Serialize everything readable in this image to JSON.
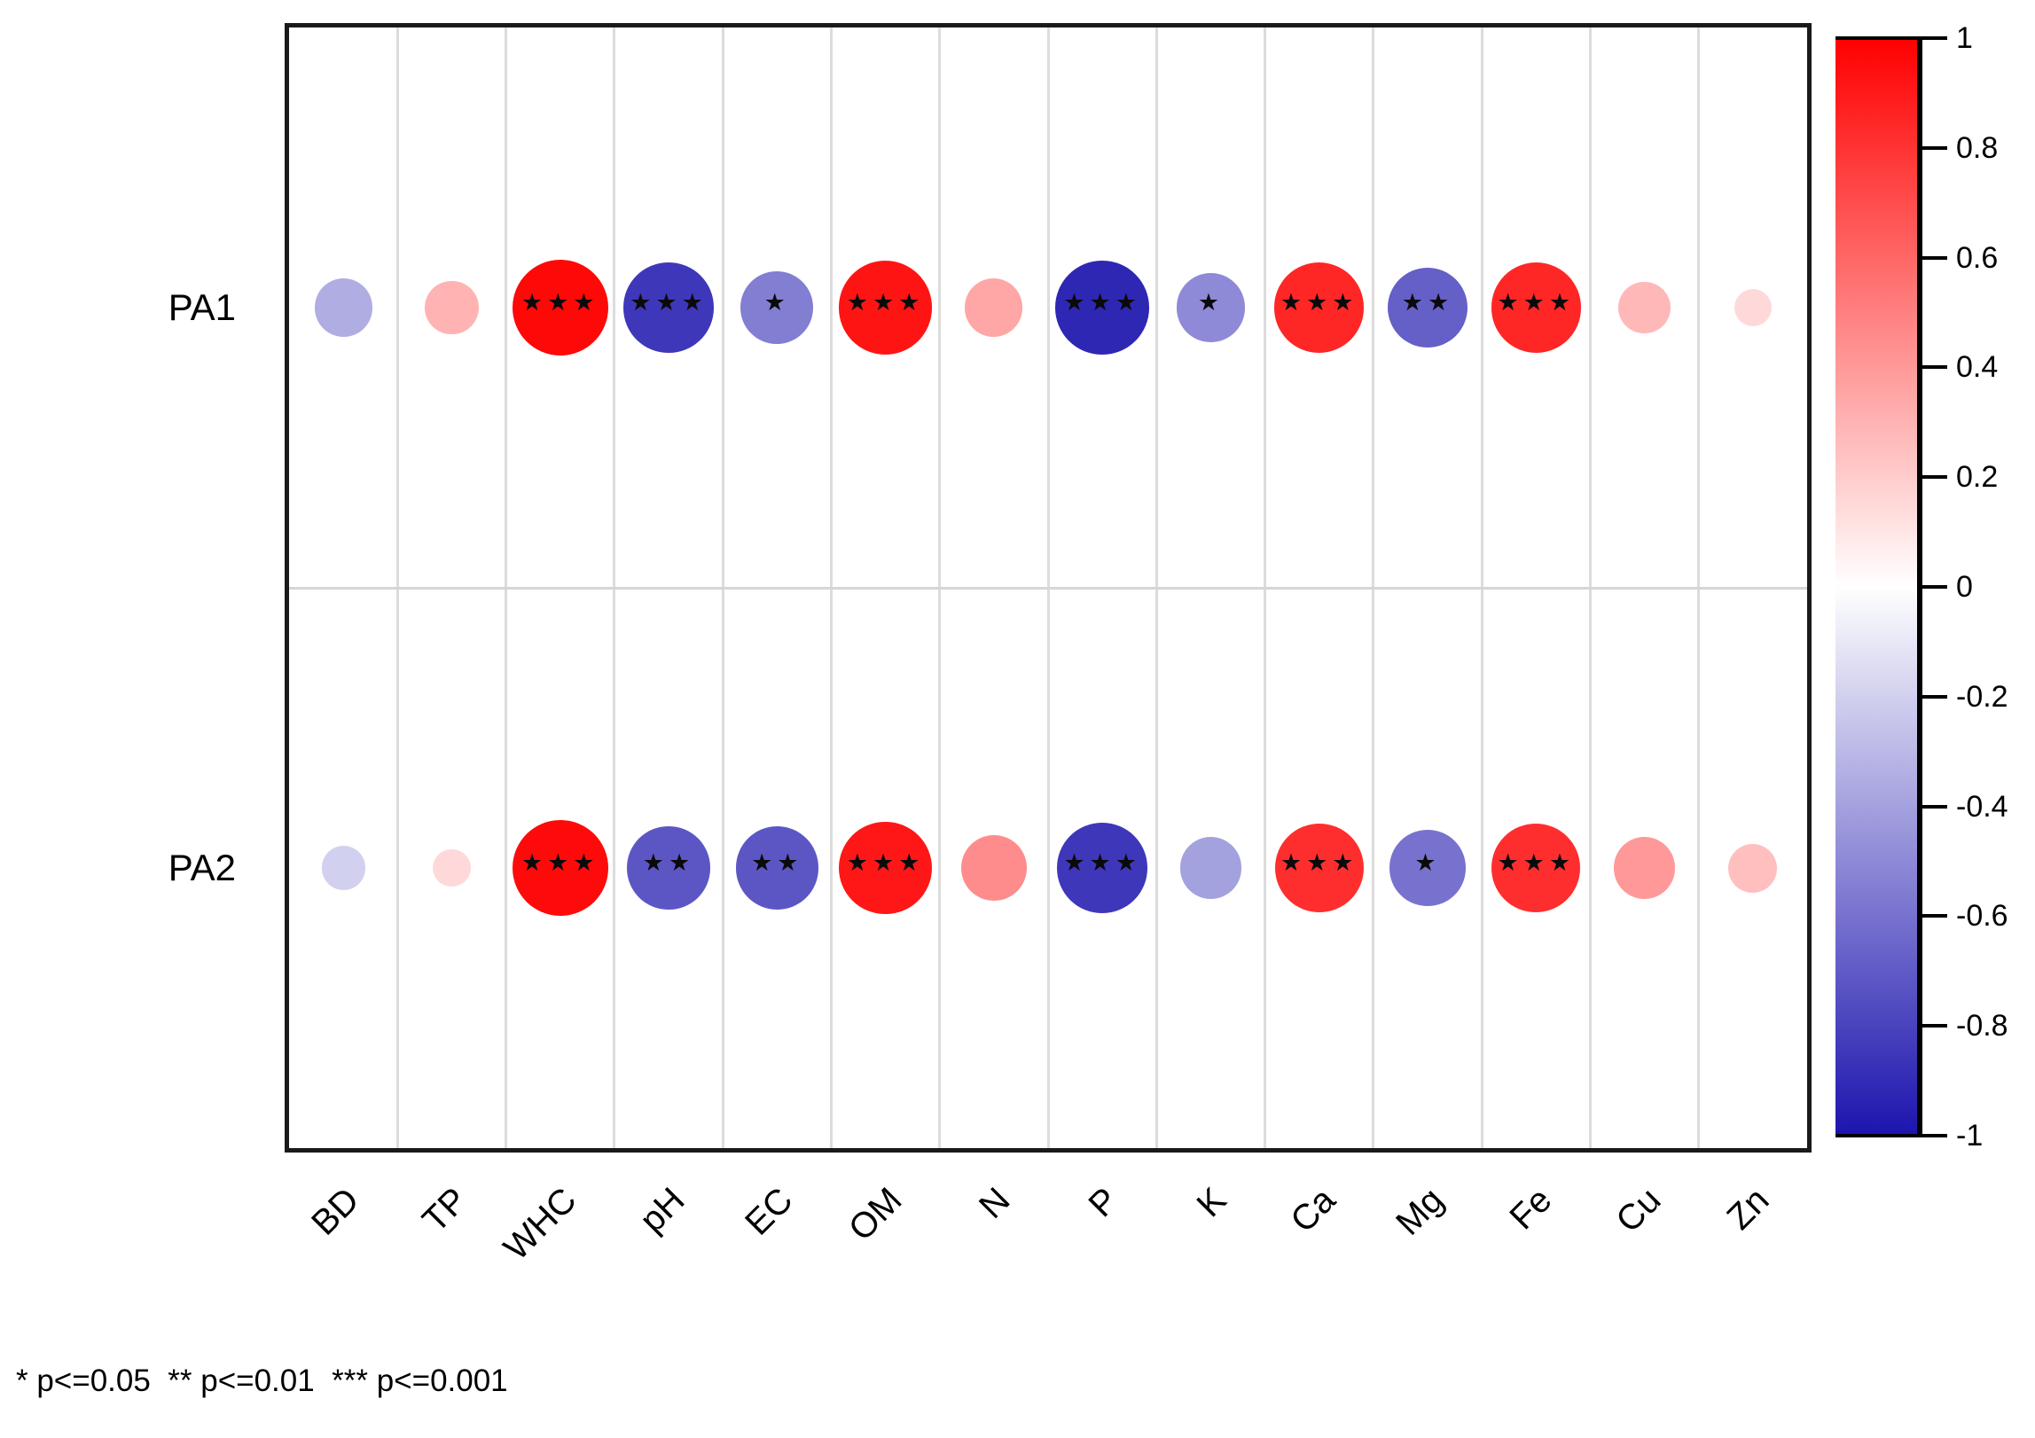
{
  "chart_data": {
    "type": "correlation-bubble-matrix",
    "title": "",
    "rows": [
      "PA1",
      "PA2"
    ],
    "columns": [
      "BD",
      "TP",
      "WHC",
      "pH",
      "EC",
      "OM",
      "N",
      "P",
      "K",
      "Ca",
      "Mg",
      "Fe",
      "Cu",
      "Zn"
    ],
    "series": [
      {
        "name": "PA1",
        "values": [
          -0.35,
          0.3,
          0.97,
          -0.85,
          -0.55,
          0.92,
          0.35,
          -0.92,
          -0.5,
          0.85,
          -0.68,
          0.85,
          0.28,
          0.15
        ],
        "significance": [
          "",
          "",
          "***",
          "***",
          "*",
          "***",
          "",
          "***",
          "*",
          "***",
          "**",
          "***",
          "",
          ""
        ]
      },
      {
        "name": "PA2",
        "values": [
          -0.2,
          0.15,
          0.96,
          -0.72,
          -0.72,
          0.91,
          0.45,
          -0.85,
          -0.4,
          0.82,
          -0.6,
          0.82,
          0.4,
          0.25
        ],
        "significance": [
          "",
          "",
          "***",
          "**",
          "**",
          "***",
          "",
          "***",
          "",
          "***",
          "*",
          "***",
          "",
          ""
        ]
      }
    ],
    "colorbar": {
      "min": -1,
      "max": 1,
      "tick_labels": [
        "1",
        "0.8",
        "0.6",
        "0.4",
        "0.2",
        "0",
        "-0.2",
        "-0.4",
        "-0.6",
        "-0.8",
        "-1"
      ],
      "color_positive": "#ff0000",
      "color_zero": "#ffffff",
      "color_negative": "#1c14ae"
    },
    "star_glyph": "★",
    "legend_text": "* p<=0.05  ** p<=0.01  *** p<=0.001",
    "layout_hints": {
      "grid": "on",
      "legend_position": "right-colorbar",
      "size_encoding": "radius ~ sqrt(|r|)",
      "color_encoding": "diverging red-white-blue"
    }
  }
}
